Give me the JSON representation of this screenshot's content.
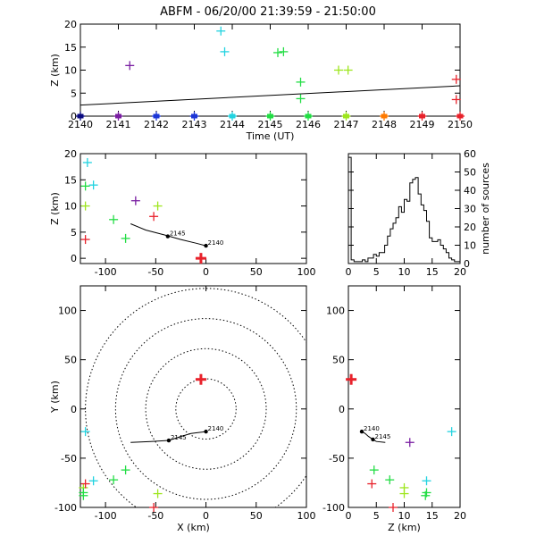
{
  "colors": {
    "purple": "#7a1fa2",
    "cyan": "#22d3e0",
    "green": "#22dd44",
    "lime": "#9ee61e",
    "red": "#e8222b",
    "orange": "#ff7a00",
    "blue": "#1d36d6",
    "navy": "#0a0a80"
  },
  "chart_data": [
    {
      "id": "time_z",
      "type": "scatter",
      "title": "ABFM - 06/20/00 21:39:59 - 21:50:00",
      "xlabel": "Time (UT)",
      "ylabel": "Z (km)",
      "xlim": [
        2140,
        2150
      ],
      "ylim": [
        0,
        20
      ],
      "xticks": [
        2140,
        2141,
        2142,
        2143,
        2144,
        2145,
        2146,
        2147,
        2148,
        2149,
        2150
      ],
      "yticks": [
        0,
        5,
        10,
        15,
        20
      ],
      "trend_line": [
        [
          2140,
          2.4
        ],
        [
          2150,
          6.6
        ]
      ],
      "points": [
        {
          "x": 2141.3,
          "y": 11,
          "c": "purple"
        },
        {
          "x": 2143.7,
          "y": 18.5,
          "c": "cyan"
        },
        {
          "x": 2143.8,
          "y": 14,
          "c": "cyan"
        },
        {
          "x": 2145.2,
          "y": 13.8,
          "c": "green"
        },
        {
          "x": 2145.35,
          "y": 14,
          "c": "green"
        },
        {
          "x": 2145.8,
          "y": 7.4,
          "c": "green"
        },
        {
          "x": 2145.8,
          "y": 3.8,
          "c": "green"
        },
        {
          "x": 2146.8,
          "y": 10,
          "c": "lime"
        },
        {
          "x": 2147.05,
          "y": 10,
          "c": "lime"
        },
        {
          "x": 2149.9,
          "y": 8,
          "c": "red"
        },
        {
          "x": 2149.9,
          "y": 3.6,
          "c": "red"
        }
      ],
      "base_points": [
        {
          "x": 2140,
          "c": "navy"
        },
        {
          "x": 2141,
          "c": "purple"
        },
        {
          "x": 2142,
          "c": "blue"
        },
        {
          "x": 2143,
          "c": "blue"
        },
        {
          "x": 2144,
          "c": "cyan"
        },
        {
          "x": 2145,
          "c": "green"
        },
        {
          "x": 2146,
          "c": "green"
        },
        {
          "x": 2147,
          "c": "lime"
        },
        {
          "x": 2148,
          "c": "orange"
        },
        {
          "x": 2149,
          "c": "red"
        },
        {
          "x": 2150,
          "c": "red"
        }
      ]
    },
    {
      "id": "x_z",
      "type": "scatter",
      "xlabel": "",
      "ylabel": "Z (km)",
      "xlim": [
        -125,
        100
      ],
      "ylim": [
        -1,
        20
      ],
      "xticks": [
        -100,
        -50,
        0,
        50,
        100
      ],
      "yticks": [
        0,
        5,
        10,
        15,
        20
      ],
      "track": [
        [
          -75,
          6.6
        ],
        [
          -60,
          5.4
        ],
        [
          -40,
          4.4
        ],
        [
          -25,
          3.6
        ],
        [
          -10,
          2.9
        ],
        [
          0,
          2.4
        ]
      ],
      "track_labels": [
        {
          "x": -38,
          "y": 4.2,
          "t": "2145"
        },
        {
          "x": 0,
          "y": 2.4,
          "t": "2140"
        }
      ],
      "points": [
        {
          "x": -118,
          "y": 18.3,
          "c": "cyan"
        },
        {
          "x": -112,
          "y": 14,
          "c": "cyan"
        },
        {
          "x": -120,
          "y": 13.8,
          "c": "green"
        },
        {
          "x": -120,
          "y": 10,
          "c": "lime"
        },
        {
          "x": -70,
          "y": 11,
          "c": "purple"
        },
        {
          "x": -48,
          "y": 10,
          "c": "lime"
        },
        {
          "x": -52,
          "y": 8,
          "c": "red"
        },
        {
          "x": -92,
          "y": 7.4,
          "c": "green"
        },
        {
          "x": -80,
          "y": 3.8,
          "c": "green"
        },
        {
          "x": -120,
          "y": 3.6,
          "c": "red"
        },
        {
          "x": -5,
          "y": 0,
          "c": "red",
          "big": true
        }
      ]
    },
    {
      "id": "histogram",
      "type": "bar",
      "xlabel": "",
      "ylabel": "number of sources",
      "xlim": [
        0,
        20
      ],
      "ylim": [
        0,
        60
      ],
      "xticks": [
        0,
        5,
        10,
        15,
        20
      ],
      "yticks": [
        0,
        10,
        20,
        30,
        40,
        50,
        60
      ],
      "bin_width": 0.5,
      "bin_start": 0,
      "counts": [
        58,
        2,
        1,
        1,
        1,
        2,
        1,
        3,
        3,
        5,
        4,
        6,
        6,
        10,
        15,
        19,
        22,
        25,
        31,
        28,
        35,
        34,
        44,
        46,
        47,
        38,
        32,
        29,
        23,
        14,
        12,
        12,
        13,
        10,
        8,
        6,
        3,
        2,
        1,
        1
      ]
    },
    {
      "id": "x_y",
      "type": "scatter",
      "xlabel": "X (km)",
      "ylabel": "Y (km)",
      "xlim": [
        -125,
        100
      ],
      "ylim": [
        -100,
        125
      ],
      "xticks": [
        -100,
        -50,
        0,
        50,
        100
      ],
      "yticks": [
        -100,
        -50,
        0,
        50,
        100
      ],
      "range_rings_km": [
        30,
        60,
        90,
        120
      ],
      "track": [
        [
          -75,
          -34
        ],
        [
          -55,
          -33
        ],
        [
          -37,
          -32
        ],
        [
          -25,
          -28
        ],
        [
          -15,
          -25
        ],
        [
          0,
          -23
        ]
      ],
      "track_labels": [
        {
          "x": -37,
          "y": -32,
          "t": "2145"
        },
        {
          "x": 0,
          "y": -23,
          "t": "2140"
        }
      ],
      "points": [
        {
          "x": -120,
          "y": -23,
          "c": "cyan"
        },
        {
          "x": -112,
          "y": -73,
          "c": "cyan"
        },
        {
          "x": -122,
          "y": -80,
          "c": "lime"
        },
        {
          "x": -122,
          "y": -85,
          "c": "green"
        },
        {
          "x": -122,
          "y": -88,
          "c": "green"
        },
        {
          "x": -120,
          "y": -76,
          "c": "red"
        },
        {
          "x": -92,
          "y": -72,
          "c": "green"
        },
        {
          "x": -80,
          "y": -62,
          "c": "green"
        },
        {
          "x": -48,
          "y": -86,
          "c": "lime"
        },
        {
          "x": -52,
          "y": -100,
          "c": "red"
        },
        {
          "x": -5,
          "y": 30,
          "c": "red",
          "big": true
        }
      ]
    },
    {
      "id": "z_y",
      "type": "scatter",
      "xlabel": "Z (km)",
      "ylabel": "",
      "xlim": [
        0,
        20
      ],
      "ylim": [
        -100,
        125
      ],
      "xticks": [
        0,
        5,
        10,
        15,
        20
      ],
      "yticks": [
        -100,
        -50,
        0,
        50,
        100
      ],
      "track": [
        [
          2.4,
          -23
        ],
        [
          3.0,
          -25
        ],
        [
          3.6,
          -28
        ],
        [
          4.4,
          -31
        ],
        [
          5.0,
          -33
        ],
        [
          6.6,
          -34
        ]
      ],
      "track_labels": [
        {
          "x": 2.4,
          "y": -23,
          "t": "2140"
        },
        {
          "x": 4.4,
          "y": -31,
          "t": "2145"
        }
      ],
      "points": [
        {
          "x": 18.5,
          "y": -23,
          "c": "cyan"
        },
        {
          "x": 11,
          "y": -34,
          "c": "purple"
        },
        {
          "x": 4.6,
          "y": -62,
          "c": "green"
        },
        {
          "x": 4.2,
          "y": -76,
          "c": "red"
        },
        {
          "x": 7.4,
          "y": -72,
          "c": "green"
        },
        {
          "x": 10,
          "y": -80,
          "c": "lime"
        },
        {
          "x": 10,
          "y": -86,
          "c": "lime"
        },
        {
          "x": 14,
          "y": -73,
          "c": "cyan"
        },
        {
          "x": 14,
          "y": -85,
          "c": "green"
        },
        {
          "x": 13.8,
          "y": -88,
          "c": "green"
        },
        {
          "x": 8,
          "y": -100,
          "c": "red"
        },
        {
          "x": 0.5,
          "y": 30,
          "c": "red",
          "big": true
        }
      ]
    }
  ]
}
